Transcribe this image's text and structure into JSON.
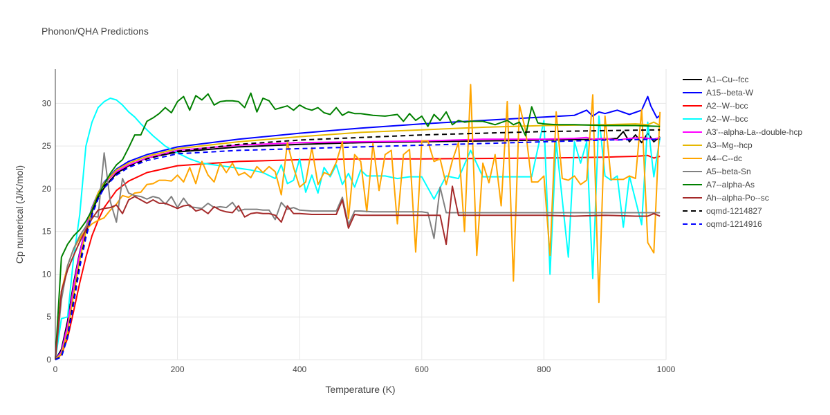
{
  "chart_data": {
    "type": "line",
    "title": "Phonon/QHA Predictions",
    "xlabel": "Temperature (K)",
    "ylabel": "Cp numerical (J/K/mol)",
    "xlim": [
      0,
      1000
    ],
    "ylim": [
      0,
      34
    ],
    "xticks": [
      0,
      200,
      400,
      600,
      800,
      1000
    ],
    "yticks": [
      0,
      5,
      10,
      15,
      20,
      25,
      30
    ],
    "grid": true,
    "legend_position": "right",
    "series": [
      {
        "name": "A1--Cu--fcc",
        "color": "#000000",
        "dash": "solid",
        "x": [
          0,
          10,
          20,
          30,
          40,
          50,
          60,
          70,
          80,
          100,
          120,
          150,
          200,
          300,
          400,
          500,
          600,
          700,
          800,
          900,
          920,
          930,
          940,
          950,
          960,
          970,
          980,
          990
        ],
        "y": [
          0,
          1.2,
          4.5,
          9.0,
          12.6,
          15.4,
          17.3,
          19.0,
          20.1,
          21.8,
          22.7,
          23.6,
          24.3,
          24.9,
          25.2,
          25.4,
          25.5,
          25.6,
          25.7,
          25.8,
          25.9,
          26.7,
          25.5,
          26.3,
          25.4,
          26.5,
          25.5,
          26.1
        ]
      },
      {
        "name": "A15--beta-W",
        "color": "#0000ff",
        "dash": "solid",
        "x": [
          0,
          10,
          20,
          30,
          40,
          50,
          60,
          70,
          80,
          100,
          120,
          150,
          200,
          300,
          400,
          500,
          600,
          700,
          800,
          850,
          870,
          880,
          890,
          900,
          920,
          940,
          960,
          970,
          975,
          985,
          990
        ],
        "y": [
          0,
          1.0,
          4.0,
          8.5,
          12.5,
          15.5,
          17.8,
          19.5,
          20.8,
          22.3,
          23.2,
          24.0,
          24.9,
          25.8,
          26.5,
          27.1,
          27.6,
          28.0,
          28.4,
          28.6,
          29.2,
          28.5,
          29.0,
          28.8,
          29.2,
          28.7,
          29.2,
          30.8,
          29.7,
          28.3,
          28.6
        ]
      },
      {
        "name": "A2--W--bcc",
        "color": "#ff0000",
        "dash": "solid",
        "x": [
          0,
          10,
          20,
          30,
          40,
          50,
          60,
          70,
          80,
          100,
          120,
          150,
          200,
          300,
          400,
          500,
          600,
          700,
          800,
          900,
          950,
          970,
          980,
          990
        ],
        "y": [
          0,
          0.6,
          2.5,
          5.7,
          9.0,
          12.0,
          14.5,
          16.3,
          17.8,
          19.8,
          20.9,
          21.9,
          22.7,
          23.2,
          23.4,
          23.5,
          23.5,
          23.55,
          23.6,
          23.7,
          23.8,
          23.9,
          23.6,
          23.8
        ]
      },
      {
        "name": "A2--W--bcc",
        "color": "#00ffff",
        "dash": "solid",
        "x": [
          0,
          10,
          20,
          30,
          40,
          50,
          60,
          70,
          80,
          90,
          100,
          110,
          120,
          130,
          140,
          150,
          160,
          180,
          200,
          220,
          240,
          260,
          280,
          300,
          320,
          340,
          360,
          370,
          380,
          390,
          400,
          410,
          420,
          430,
          440,
          450,
          460,
          470,
          480,
          490,
          500,
          510,
          520,
          540,
          560,
          580,
          600,
          620,
          640,
          660,
          680,
          700,
          740,
          780,
          800,
          810,
          820,
          840,
          850,
          860,
          870,
          880,
          890,
          900,
          910,
          920,
          930,
          940,
          960,
          970,
          980,
          990
        ],
        "y": [
          0,
          4.8,
          5.0,
          12.0,
          17.0,
          25.0,
          27.8,
          29.5,
          30.2,
          30.6,
          30.4,
          29.8,
          29.0,
          28.4,
          27.6,
          26.9,
          26.2,
          25.0,
          24.2,
          23.5,
          23.0,
          22.8,
          22.6,
          22.4,
          22.2,
          21.9,
          21.2,
          22.8,
          20.6,
          21.0,
          23.5,
          19.6,
          21.6,
          19.5,
          22.5,
          21.4,
          22.8,
          20.5,
          21.8,
          20.2,
          22.2,
          21.5,
          21.5,
          21.5,
          21.2,
          21.4,
          21.4,
          18.8,
          21.5,
          21.2,
          24.5,
          21.4,
          21.4,
          21.4,
          28.0,
          10.0,
          25.5,
          12.0,
          25.5,
          23.0,
          25.5,
          9.5,
          28.5,
          21.5,
          21.0,
          21.5,
          15.5,
          21.5,
          15.8,
          27.8,
          21.4,
          26.0
        ]
      },
      {
        "name": "A3'--alpha-La--double-hcp",
        "color": "#ff00ff",
        "dash": "solid",
        "x": [
          0,
          10,
          20,
          30,
          40,
          50,
          60,
          70,
          80,
          100,
          120,
          150,
          200,
          300,
          400,
          500,
          600,
          700,
          800,
          850,
          870,
          880,
          900,
          920,
          940,
          960,
          980,
          990
        ],
        "y": [
          0,
          0.9,
          4.0,
          8.6,
          12.4,
          15.5,
          17.7,
          19.4,
          20.6,
          22.0,
          22.8,
          23.6,
          24.5,
          25.1,
          25.4,
          25.5,
          25.6,
          25.8,
          25.8,
          25.9,
          26.0,
          25.8,
          25.9,
          25.7,
          25.9,
          26.0,
          25.8,
          26.0
        ]
      },
      {
        "name": "A3--Mg--hcp",
        "color": "#e6b800",
        "dash": "solid",
        "x": [
          0,
          10,
          20,
          30,
          40,
          50,
          60,
          70,
          80,
          100,
          120,
          150,
          200,
          300,
          400,
          500,
          600,
          700,
          800,
          900,
          950,
          970,
          980,
          990
        ],
        "y": [
          0,
          0.7,
          3.2,
          7.6,
          11.6,
          15.0,
          17.6,
          19.5,
          20.7,
          22.2,
          23.0,
          23.8,
          24.7,
          25.5,
          26.1,
          26.6,
          26.9,
          27.2,
          27.4,
          27.5,
          27.6,
          27.5,
          27.8,
          27.4
        ]
      },
      {
        "name": "A4--C--dc",
        "color": "#ffa500",
        "dash": "solid",
        "x": [
          0,
          10,
          20,
          30,
          40,
          50,
          60,
          70,
          80,
          90,
          100,
          110,
          120,
          130,
          140,
          150,
          160,
          170,
          180,
          190,
          200,
          210,
          220,
          230,
          240,
          250,
          260,
          270,
          280,
          290,
          300,
          310,
          320,
          330,
          340,
          350,
          360,
          370,
          380,
          390,
          400,
          410,
          420,
          430,
          440,
          450,
          460,
          470,
          480,
          490,
          500,
          510,
          520,
          530,
          540,
          550,
          560,
          570,
          580,
          590,
          600,
          610,
          620,
          630,
          640,
          650,
          660,
          670,
          680,
          690,
          700,
          710,
          720,
          730,
          740,
          750,
          760,
          770,
          780,
          790,
          800,
          810,
          820,
          830,
          840,
          850,
          860,
          870,
          880,
          890,
          900,
          910,
          920,
          930,
          940,
          950,
          960,
          970,
          980,
          990
        ],
        "y": [
          0,
          8.0,
          11.0,
          13.0,
          14.2,
          15.2,
          15.9,
          16.3,
          16.6,
          17.5,
          18.2,
          19.2,
          19.0,
          19.5,
          19.6,
          20.5,
          20.6,
          21.0,
          21.0,
          20.9,
          21.6,
          20.8,
          22.5,
          20.6,
          23.2,
          21.6,
          20.8,
          23.0,
          21.9,
          23.0,
          21.6,
          21.9,
          21.3,
          22.6,
          21.9,
          22.6,
          22.0,
          19.3,
          25.4,
          22.5,
          20.2,
          20.8,
          24.8,
          20.5,
          21.9,
          21.6,
          23.1,
          25.5,
          16.5,
          24.0,
          23.2,
          17.3,
          25.3,
          19.8,
          24.0,
          24.5,
          15.9,
          24.0,
          24.6,
          12.6,
          25.6,
          25.6,
          23.2,
          23.5,
          20.5,
          23.3,
          25.4,
          15.0,
          32.2,
          12.2,
          23.0,
          20.7,
          24.0,
          18.0,
          30.2,
          9.2,
          29.8,
          26.8,
          20.8,
          20.8,
          21.5,
          12.2,
          29.0,
          21.2,
          21.0,
          21.5,
          20.5,
          21.0,
          31.0,
          6.7,
          28.5,
          21.1,
          21.1,
          21.1,
          21.5,
          21.2,
          29.3,
          13.7,
          12.5,
          29.0
        ]
      },
      {
        "name": "A5--beta-Sn",
        "color": "#808080",
        "dash": "solid",
        "x": [
          0,
          10,
          20,
          30,
          40,
          50,
          60,
          70,
          80,
          90,
          100,
          110,
          120,
          130,
          140,
          150,
          160,
          170,
          180,
          190,
          200,
          210,
          220,
          230,
          240,
          250,
          260,
          270,
          280,
          290,
          300,
          310,
          320,
          330,
          340,
          350,
          360,
          370,
          380,
          390,
          400,
          420,
          440,
          460,
          470,
          480,
          490,
          500,
          520,
          540,
          560,
          580,
          600,
          610,
          620,
          630,
          640,
          650,
          700,
          750,
          800,
          850,
          900,
          950,
          990
        ],
        "y": [
          0,
          7.0,
          11.0,
          13.0,
          14.5,
          15.6,
          16.8,
          16.7,
          24.2,
          18.5,
          16.1,
          21.2,
          19.5,
          19.2,
          19.1,
          18.8,
          19.1,
          18.9,
          18.2,
          19.1,
          17.8,
          18.9,
          17.9,
          17.8,
          17.7,
          18.3,
          17.8,
          17.9,
          17.8,
          18.4,
          17.4,
          17.6,
          17.6,
          17.6,
          17.5,
          17.5,
          16.4,
          18.4,
          17.6,
          17.8,
          17.5,
          17.4,
          17.4,
          17.4,
          19.0,
          15.8,
          17.4,
          17.4,
          17.3,
          17.3,
          17.3,
          17.3,
          17.3,
          17.2,
          14.2,
          20.2,
          17.2,
          17.2,
          17.2,
          17.2,
          17.2,
          17.2,
          17.2,
          17.2,
          17.2
        ]
      },
      {
        "name": "A7--alpha-As",
        "color": "#008000",
        "dash": "solid",
        "x": [
          0,
          10,
          20,
          30,
          40,
          50,
          60,
          70,
          80,
          90,
          100,
          110,
          120,
          130,
          140,
          150,
          160,
          170,
          180,
          190,
          200,
          210,
          220,
          230,
          240,
          250,
          260,
          270,
          280,
          290,
          300,
          310,
          320,
          330,
          340,
          350,
          360,
          370,
          380,
          390,
          400,
          410,
          420,
          430,
          440,
          450,
          460,
          470,
          480,
          490,
          500,
          520,
          540,
          560,
          570,
          580,
          590,
          600,
          610,
          620,
          630,
          640,
          650,
          660,
          670,
          680,
          700,
          720,
          740,
          750,
          760,
          770,
          780,
          790,
          800,
          820,
          850,
          900,
          950,
          990
        ],
        "y": [
          0,
          12.0,
          13.5,
          14.5,
          15.2,
          16.2,
          17.5,
          19.2,
          20.5,
          21.8,
          22.8,
          23.4,
          24.8,
          26.3,
          26.3,
          27.9,
          28.3,
          28.8,
          29.5,
          28.9,
          30.2,
          30.8,
          29.2,
          30.9,
          30.4,
          31.1,
          29.8,
          30.2,
          30.3,
          30.3,
          30.2,
          29.5,
          31.2,
          29.0,
          30.6,
          30.3,
          29.3,
          29.5,
          29.7,
          29.2,
          29.8,
          29.4,
          29.2,
          29.5,
          28.9,
          28.7,
          29.5,
          28.6,
          29.0,
          28.8,
          28.8,
          28.6,
          28.5,
          28.7,
          27.9,
          28.8,
          28.0,
          28.5,
          27.3,
          28.7,
          28.0,
          29.0,
          27.5,
          28.0,
          27.8,
          27.9,
          27.9,
          27.5,
          28.0,
          27.5,
          27.8,
          26.2,
          29.6,
          27.7,
          27.6,
          27.5,
          27.5,
          27.4,
          27.4,
          27.3
        ]
      },
      {
        "name": "Ah--alpha-Po--sc",
        "color": "#a52a2a",
        "dash": "solid",
        "x": [
          0,
          10,
          20,
          30,
          40,
          50,
          60,
          70,
          80,
          90,
          100,
          110,
          120,
          130,
          140,
          150,
          160,
          170,
          180,
          190,
          200,
          210,
          220,
          230,
          240,
          250,
          260,
          270,
          280,
          290,
          300,
          310,
          320,
          330,
          340,
          350,
          360,
          370,
          380,
          390,
          400,
          420,
          440,
          460,
          470,
          480,
          490,
          500,
          550,
          600,
          620,
          630,
          640,
          650,
          660,
          700,
          750,
          800,
          850,
          900,
          950,
          970,
          980,
          990
        ],
        "y": [
          0,
          8.0,
          10.5,
          12.2,
          13.8,
          15.2,
          16.5,
          17.5,
          17.7,
          17.8,
          18.1,
          17.1,
          18.7,
          19.1,
          18.7,
          18.3,
          18.7,
          18.3,
          18.3,
          18.0,
          17.7,
          18.0,
          18.1,
          17.4,
          17.6,
          17.1,
          17.9,
          17.5,
          17.3,
          17.2,
          18.0,
          16.7,
          17.1,
          17.2,
          17.1,
          17.1,
          16.9,
          16.1,
          18.0,
          17.1,
          17.1,
          17.0,
          17.0,
          17.0,
          18.7,
          15.4,
          17.0,
          16.9,
          16.9,
          16.9,
          16.9,
          16.9,
          13.5,
          20.3,
          16.9,
          16.9,
          16.9,
          16.9,
          16.8,
          16.9,
          16.8,
          16.8,
          17.1,
          16.8
        ]
      },
      {
        "name": "oqmd-1214827",
        "color": "#000000",
        "dash": "dashed",
        "x": [
          0,
          10,
          20,
          30,
          40,
          50,
          60,
          70,
          80,
          100,
          120,
          150,
          200,
          300,
          400,
          500,
          600,
          700,
          800,
          900,
          990
        ],
        "y": [
          0,
          0.4,
          2.8,
          7.0,
          11.2,
          14.6,
          17.1,
          19.0,
          20.3,
          21.7,
          22.6,
          23.5,
          24.4,
          25.2,
          25.7,
          26.0,
          26.3,
          26.5,
          26.7,
          26.8,
          26.9
        ]
      },
      {
        "name": "oqmd-1214916",
        "color": "#0000ff",
        "dash": "dashed",
        "x": [
          0,
          10,
          20,
          30,
          40,
          50,
          60,
          70,
          80,
          100,
          120,
          150,
          200,
          300,
          400,
          500,
          600,
          700,
          800,
          900,
          990
        ],
        "y": [
          0,
          0.3,
          2.6,
          6.6,
          10.8,
          14.3,
          16.9,
          18.8,
          20.1,
          21.6,
          22.5,
          23.3,
          24.1,
          24.5,
          24.7,
          24.9,
          25.1,
          25.3,
          25.5,
          25.7,
          25.8
        ]
      }
    ]
  }
}
